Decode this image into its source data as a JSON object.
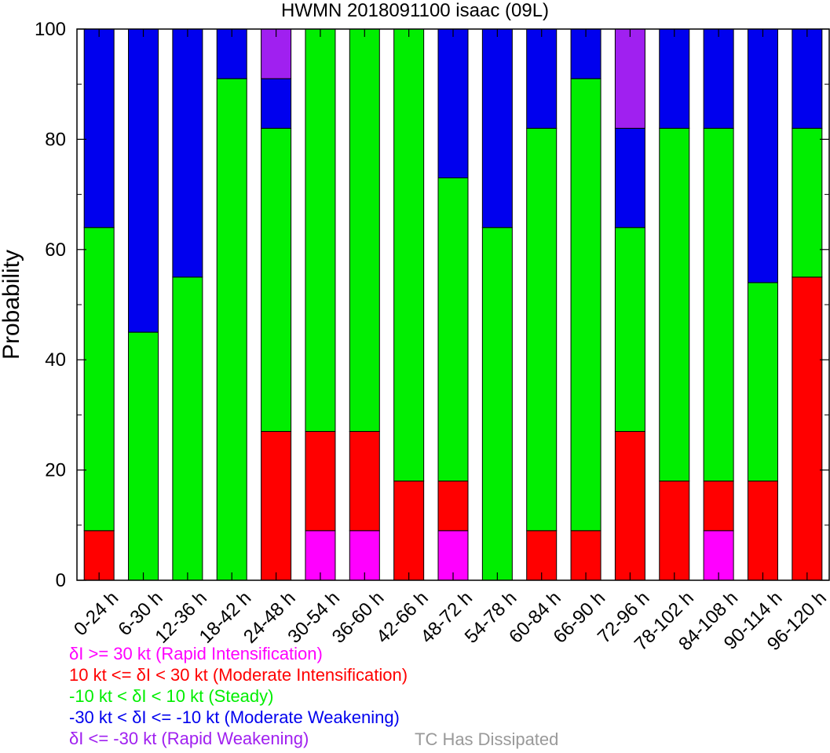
{
  "chart_data": {
    "type": "bar",
    "stacked": true,
    "title": "HWMN 2018091100 isaac (09L)",
    "xlabel": "",
    "ylabel": "Probability",
    "ylim": [
      0,
      100
    ],
    "yticks": [
      0,
      20,
      40,
      60,
      80,
      100
    ],
    "grid": false,
    "categories": [
      "0-24 h",
      "6-30 h",
      "12-36 h",
      "18-42 h",
      "24-48 h",
      "30-54 h",
      "36-60 h",
      "42-66 h",
      "48-72 h",
      "54-78 h",
      "60-84 h",
      "66-90 h",
      "72-96 h",
      "78-102 h",
      "84-108 h",
      "90-114 h",
      "96-120 h"
    ],
    "series": [
      {
        "name": "δI >= 30 kt (Rapid Intensification)",
        "color": "#ff00ff",
        "values": [
          0,
          0,
          0,
          0,
          0,
          9,
          9,
          0,
          9,
          0,
          0,
          0,
          0,
          0,
          9,
          0,
          0
        ]
      },
      {
        "name": "10 kt <= δI < 30 kt (Moderate Intensification)",
        "color": "#ff0000",
        "values": [
          9,
          0,
          0,
          0,
          27,
          18,
          18,
          18,
          9,
          0,
          9,
          9,
          27,
          18,
          9,
          18,
          55
        ]
      },
      {
        "name": "-10 kt < δI < 10 kt (Steady)",
        "color": "#00ee00",
        "values": [
          55,
          45,
          55,
          91,
          55,
          73,
          73,
          82,
          55,
          64,
          73,
          82,
          37,
          64,
          64,
          36,
          27
        ]
      },
      {
        "name": "-30 kt < δI <= -10 kt (Moderate Weakening)",
        "color": "#0000ee",
        "values": [
          36,
          55,
          45,
          9,
          9,
          0,
          0,
          0,
          27,
          36,
          18,
          9,
          18,
          18,
          18,
          46,
          18
        ]
      },
      {
        "name": "δI <= -30 kt (Rapid Weakening)",
        "color": "#a020f0",
        "values": [
          0,
          0,
          0,
          0,
          9,
          0,
          0,
          0,
          0,
          0,
          0,
          0,
          18,
          0,
          0,
          0,
          0
        ]
      }
    ],
    "legend_placement": "bottom-left",
    "extra_legend": {
      "label": "TC Has Dissipated",
      "color": "#999999",
      "values": [
        0,
        0,
        0,
        0,
        0,
        0,
        0,
        0,
        0,
        0,
        0,
        0,
        0,
        0,
        0,
        0,
        0
      ]
    }
  }
}
